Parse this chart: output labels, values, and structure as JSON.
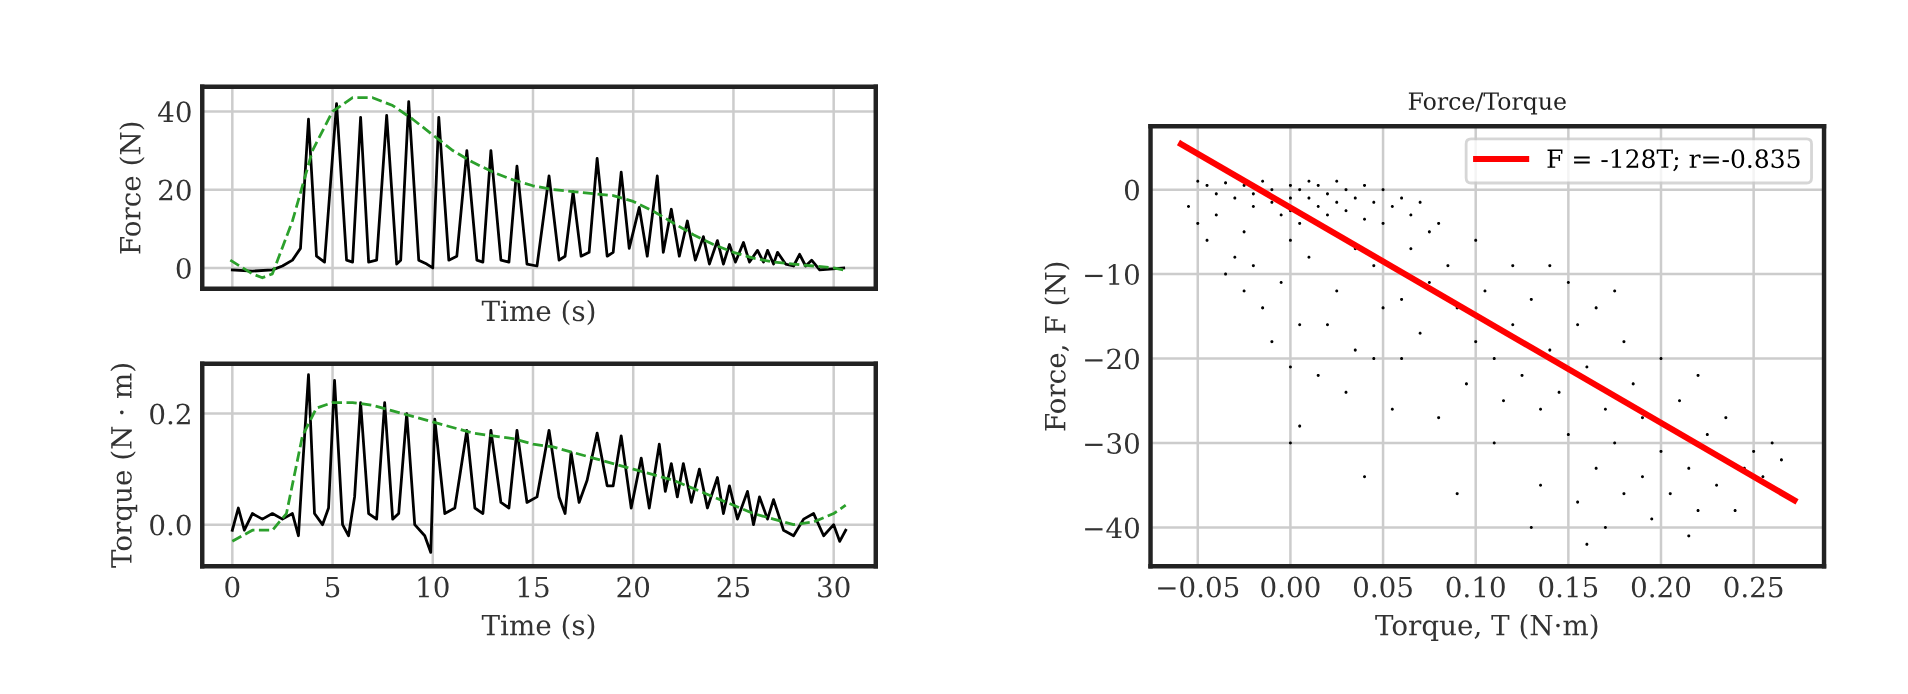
{
  "chart_data": [
    {
      "type": "line",
      "ylabel": "Force (N)",
      "xlabel": "Time (s)",
      "xlim": [
        -1.5,
        32.1
      ],
      "ylim": [
        -5.3,
        46.3
      ],
      "xticks": [
        0,
        5,
        10,
        15,
        20,
        25,
        30
      ],
      "yticks": [
        0,
        20,
        40
      ],
      "tick_labels": "y",
      "grid": true,
      "series": [
        {
          "color": "#000000",
          "line_style": "solid",
          "x": [
            0,
            1,
            2,
            2.5,
            3,
            3.4,
            3.8,
            4.2,
            4.6,
            5.2,
            5.7,
            6,
            6.4,
            6.8,
            7.2,
            7.7,
            8.2,
            8.4,
            8.8,
            9.3,
            9.7,
            10,
            10.3,
            10.8,
            11.2,
            11.7,
            12.2,
            12.5,
            12.9,
            13.4,
            13.8,
            14.2,
            14.7,
            15.2,
            15.8,
            16.3,
            16.6,
            17,
            17.4,
            17.8,
            18.2,
            18.7,
            19,
            19.4,
            19.8,
            20.3,
            20.7,
            21.2,
            21.5,
            21.9,
            22.3,
            22.7,
            23.1,
            23.5,
            23.8,
            24.2,
            24.5,
            24.8,
            25.1,
            25.5,
            25.8,
            26.2,
            26.5,
            26.7,
            27,
            27.2,
            27.6,
            28,
            28.3,
            28.6,
            28.9,
            29.3,
            29.8,
            30.5
          ],
          "values": [
            -0.5,
            -0.8,
            -0.5,
            0.5,
            2,
            5,
            38,
            3,
            1.5,
            42,
            2,
            1.5,
            38.5,
            1.5,
            2,
            39,
            1,
            2,
            42.5,
            2,
            1,
            0,
            38.5,
            2,
            3,
            30,
            2,
            1.5,
            30,
            2,
            1.5,
            26,
            1,
            0.5,
            23.5,
            2,
            3,
            19.5,
            3,
            4,
            28,
            3,
            4,
            24.5,
            5,
            15.5,
            3,
            23.5,
            4,
            15,
            3,
            12,
            2,
            8,
            1,
            7,
            1,
            6,
            1.5,
            6.5,
            1.5,
            4.5,
            1.5,
            4.5,
            1,
            4,
            1,
            0.5,
            3.5,
            0.5,
            2,
            -0.5,
            -0.3,
            0
          ]
        },
        {
          "color": "#2ca02c",
          "line_style": "dashed",
          "x": [
            -0.1,
            1,
            1.5,
            2,
            3,
            4,
            5,
            6,
            7,
            8,
            9,
            10,
            11,
            12,
            13,
            14,
            15,
            16,
            17,
            18,
            19,
            20,
            21,
            22,
            23,
            24,
            25,
            26,
            27,
            28,
            29,
            30,
            30.5
          ],
          "values": [
            2,
            -1.5,
            -2.5,
            -1.5,
            12,
            30,
            40,
            43.5,
            43.5,
            41.5,
            38,
            34,
            30,
            27,
            24.5,
            22.5,
            21,
            20,
            19.5,
            19,
            18.5,
            17,
            14.5,
            11.5,
            8.5,
            6,
            4,
            2.5,
            1.5,
            1,
            0.5,
            0,
            -0.5
          ]
        }
      ]
    },
    {
      "type": "line",
      "ylabel": "Torque (N · m)",
      "xlabel": "Time (s)",
      "xlim": [
        -1.5,
        32.1
      ],
      "ylim": [
        -0.075,
        0.29
      ],
      "xticks": [
        0,
        5,
        10,
        15,
        20,
        25,
        30
      ],
      "yticks": [
        {
          "value": 0,
          "label": "0.0"
        },
        {
          "value": 0.2,
          "label": "0.2"
        }
      ],
      "grid": true,
      "series": [
        {
          "color": "#000000",
          "line_style": "solid",
          "x": [
            0,
            0.3,
            0.6,
            1,
            1.5,
            2,
            2.5,
            3,
            3.3,
            3.5,
            3.8,
            4.1,
            4.5,
            4.8,
            5.1,
            5.5,
            5.8,
            6.1,
            6.4,
            6.8,
            7.2,
            7.6,
            8,
            8.3,
            8.7,
            9.1,
            9.6,
            9.9,
            10.1,
            10.6,
            11.1,
            11.7,
            12.1,
            12.5,
            12.9,
            13.4,
            13.8,
            14.2,
            14.7,
            15.2,
            15.8,
            16.3,
            16.6,
            16.9,
            17.3,
            17.7,
            18.2,
            18.7,
            19,
            19.4,
            19.9,
            20.4,
            20.8,
            21.3,
            21.6,
            21.9,
            22.2,
            22.5,
            22.9,
            23.3,
            23.7,
            24.2,
            24.5,
            24.8,
            25.2,
            25.7,
            26,
            26.3,
            26.7,
            27,
            27.5,
            28,
            28.5,
            29,
            29.5,
            30,
            30.3,
            30.6
          ],
          "values": [
            -0.01,
            0.03,
            -0.01,
            0.02,
            0.01,
            0.02,
            0.01,
            0.02,
            -0.02,
            0.1,
            0.27,
            0.02,
            0.0,
            0.03,
            0.26,
            0.0,
            -0.02,
            0.05,
            0.22,
            0.02,
            0.01,
            0.22,
            0.01,
            0.02,
            0.2,
            0.0,
            -0.02,
            -0.05,
            0.19,
            0.02,
            0.03,
            0.17,
            0.03,
            0.02,
            0.17,
            0.04,
            0.03,
            0.17,
            0.04,
            0.05,
            0.17,
            0.05,
            0.02,
            0.13,
            0.04,
            0.08,
            0.165,
            0.07,
            0.07,
            0.16,
            0.03,
            0.12,
            0.03,
            0.145,
            0.06,
            0.11,
            0.05,
            0.11,
            0.04,
            0.1,
            0.03,
            0.085,
            0.02,
            0.07,
            0.01,
            0.06,
            0.0,
            0.05,
            0.01,
            0.045,
            -0.01,
            -0.02,
            0.01,
            0.02,
            -0.02,
            0.0,
            -0.03,
            -0.01
          ]
        },
        {
          "color": "#2ca02c",
          "line_style": "dashed",
          "x": [
            0,
            1,
            2,
            2.7,
            3.5,
            4.2,
            5,
            6,
            7,
            8,
            9,
            10,
            11,
            12,
            13,
            14,
            15,
            16,
            17,
            18,
            19,
            20,
            21,
            22,
            23,
            24,
            25,
            26,
            27,
            28,
            29,
            30,
            30.6
          ],
          "values": [
            -0.03,
            -0.01,
            -0.01,
            0.02,
            0.16,
            0.21,
            0.22,
            0.22,
            0.215,
            0.205,
            0.195,
            0.185,
            0.175,
            0.165,
            0.16,
            0.155,
            0.145,
            0.14,
            0.13,
            0.12,
            0.11,
            0.1,
            0.09,
            0.08,
            0.065,
            0.05,
            0.035,
            0.02,
            0.01,
            0.0,
            0.005,
            0.02,
            0.035
          ]
        }
      ]
    },
    {
      "type": "scatter",
      "title": "Force/Torque",
      "xlabel": "Torque, T (N·m)",
      "ylabel": "Force, F (N)",
      "xlim": [
        -0.0755,
        0.288
      ],
      "ylim": [
        -44.6,
        7.5
      ],
      "xticks": [
        {
          "value": -0.05,
          "label": "−0.05"
        },
        {
          "value": 0,
          "label": "0.00"
        },
        {
          "value": 0.05,
          "label": "0.05"
        },
        {
          "value": 0.1,
          "label": "0.10"
        },
        {
          "value": 0.15,
          "label": "0.15"
        },
        {
          "value": 0.2,
          "label": "0.20"
        },
        {
          "value": 0.25,
          "label": "0.25"
        }
      ],
      "yticks": [
        {
          "value": -40,
          "label": "−40"
        },
        {
          "value": -30,
          "label": "−30"
        },
        {
          "value": -20,
          "label": "−20"
        },
        {
          "value": -10,
          "label": "−10"
        },
        0
      ],
      "grid": true,
      "legend": "top right",
      "series": [
        {
          "type": "scatter",
          "color": "#000000",
          "x": [
            -0.05,
            -0.045,
            -0.04,
            -0.035,
            -0.03,
            -0.025,
            -0.02,
            -0.02,
            -0.015,
            -0.01,
            -0.01,
            -0.005,
            0,
            0,
            0,
            0.005,
            0.005,
            0.01,
            0.01,
            0.015,
            0.015,
            0.02,
            0.02,
            0.025,
            0.025,
            0.03,
            0.03,
            0.035,
            0.04,
            0.04,
            0.045,
            0.05,
            0.05,
            0.055,
            0.06,
            0.065,
            0.07,
            0.075,
            -0.055,
            -0.05,
            -0.045,
            -0.04,
            -0.035,
            -0.03,
            -0.025,
            -0.02,
            -0.015,
            -0.01,
            -0.005,
            0,
            0,
            0,
            0.005,
            0.01,
            0.015,
            0.02,
            0.025,
            0.03,
            0.035,
            0.04,
            0.045,
            0.05,
            0.055,
            0.06,
            0.065,
            0.07,
            0.075,
            0.08,
            0.085,
            0.09,
            0.09,
            0.095,
            0.1,
            0.1,
            0.105,
            0.11,
            0.115,
            0.12,
            0.12,
            0.125,
            0.13,
            0.135,
            0.135,
            0.14,
            0.14,
            0.145,
            0.15,
            0.15,
            0.155,
            0.155,
            0.16,
            0.16,
            0.165,
            0.165,
            0.17,
            0.17,
            0.175,
            0.18,
            0.18,
            0.185,
            0.19,
            0.19,
            0.195,
            0.2,
            0.2,
            0.205,
            0.21,
            0.215,
            0.215,
            0.22,
            0.22,
            0.225,
            0.23,
            0.235,
            0.24,
            0.245,
            0.25,
            0.255,
            0.26,
            0.265,
            -0.025,
            0.035,
            0.06,
            0.08,
            0.11,
            0.13,
            0.175,
            0.005,
            0.045
          ],
          "values": [
            1,
            0.5,
            -0.5,
            0.8,
            -1,
            0.5,
            -0.5,
            -2,
            1,
            0,
            -1.5,
            -3,
            0.5,
            -1,
            -2.5,
            0,
            -4,
            1,
            -1,
            -2,
            0.5,
            -0.5,
            -3,
            1,
            -1.5,
            0,
            -2.5,
            -1,
            0.5,
            -3.5,
            -1.5,
            0,
            -4,
            -2,
            -1,
            -3,
            -1.5,
            -5,
            -2,
            -4,
            -6,
            -3,
            -10,
            -8,
            -12,
            -9,
            -14,
            -18,
            -11,
            -6,
            -21,
            -30,
            -28,
            -8,
            -22,
            -16,
            -12,
            -24,
            -19,
            -34,
            -9,
            -14,
            -26,
            -20,
            -7,
            -17,
            -11,
            -27,
            -9,
            -14,
            -36,
            -23,
            -6,
            -18,
            -12,
            -20,
            -25,
            -9,
            -16,
            -22,
            -13,
            -26,
            -35,
            -9,
            -19,
            -24,
            -11,
            -29,
            -37,
            -16,
            -21,
            -42,
            -33,
            -14,
            -26,
            -40,
            -30,
            -18,
            -36,
            -23,
            -34,
            -27,
            -39,
            -20,
            -31,
            -36,
            -25,
            -41,
            -33,
            -22,
            -38,
            -29,
            -35,
            -27,
            -38,
            -33,
            -31,
            -34,
            -30,
            -32,
            -5,
            -7,
            -13,
            -4,
            -30,
            -40,
            -12,
            -16,
            -20
          ]
        },
        {
          "type": "line",
          "name": "F = -128T; r=-0.835",
          "color": "#ff0000",
          "line_style": "solid",
          "x": [
            -0.059,
            0.272
          ],
          "values": [
            5.4,
            -36.8
          ]
        }
      ]
    }
  ]
}
